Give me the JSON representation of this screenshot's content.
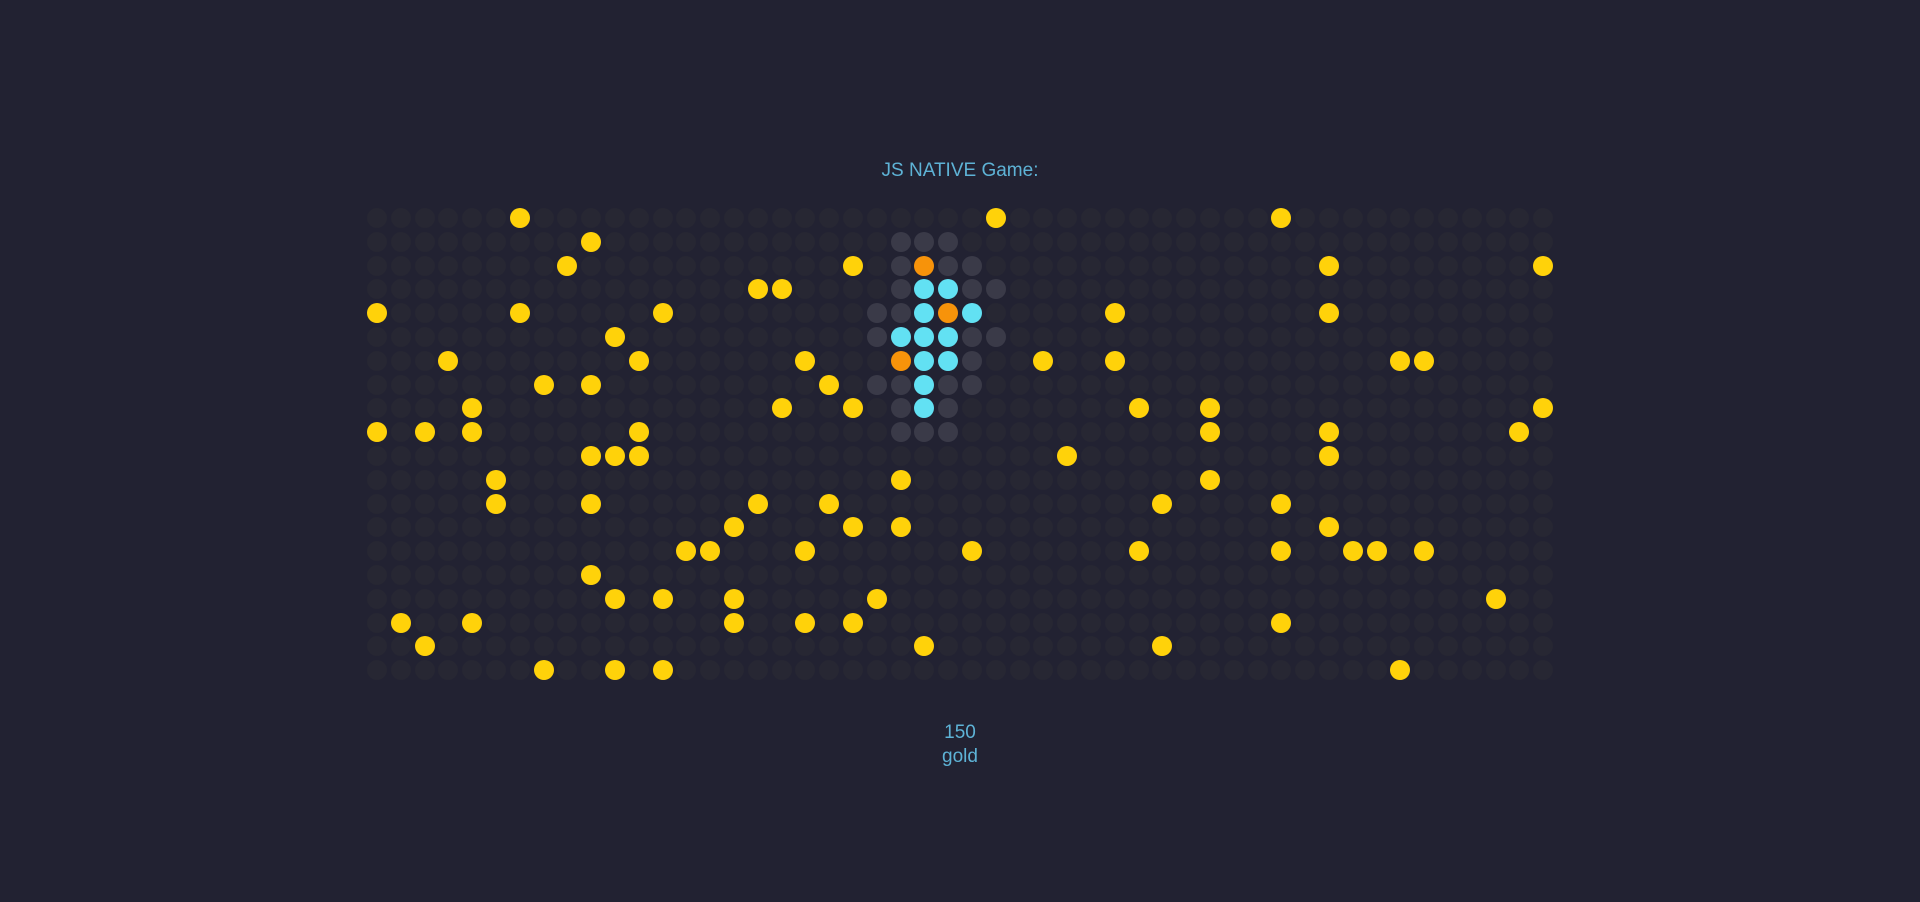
{
  "title": "JS NATIVE Game:",
  "score": {
    "value": "150",
    "unit": "gold"
  },
  "grid": {
    "cols": 50,
    "rows": 20,
    "legend": {
      "empty": "empty-cell",
      "fog": "revealed-cell",
      "gold": "gold-coin",
      "player": "player-body",
      "enemy": "enemy"
    },
    "colors": {
      "background": "#222232",
      "empty": "#272733",
      "fog": "#3a3a48",
      "gold": "#ffd20a",
      "player": "#62e1f3",
      "enemy": "#f7930a",
      "text": "#5eb3d6"
    },
    "gold": [
      [
        0,
        6
      ],
      [
        0,
        26
      ],
      [
        0,
        38
      ],
      [
        1,
        9
      ],
      [
        2,
        8
      ],
      [
        2,
        20
      ],
      [
        2,
        40
      ],
      [
        2,
        49
      ],
      [
        3,
        16
      ],
      [
        3,
        17
      ],
      [
        4,
        0
      ],
      [
        4,
        6
      ],
      [
        4,
        12
      ],
      [
        4,
        31
      ],
      [
        4,
        40
      ],
      [
        5,
        10
      ],
      [
        6,
        3
      ],
      [
        6,
        11
      ],
      [
        6,
        18
      ],
      [
        6,
        28
      ],
      [
        6,
        31
      ],
      [
        6,
        43
      ],
      [
        6,
        44
      ],
      [
        7,
        7
      ],
      [
        7,
        9
      ],
      [
        7,
        19
      ],
      [
        8,
        4
      ],
      [
        8,
        17
      ],
      [
        8,
        20
      ],
      [
        8,
        32
      ],
      [
        8,
        35
      ],
      [
        8,
        49
      ],
      [
        9,
        0
      ],
      [
        9,
        2
      ],
      [
        9,
        4
      ],
      [
        9,
        11
      ],
      [
        9,
        35
      ],
      [
        9,
        40
      ],
      [
        9,
        48
      ],
      [
        10,
        9
      ],
      [
        10,
        10
      ],
      [
        10,
        11
      ],
      [
        10,
        29
      ],
      [
        10,
        40
      ],
      [
        11,
        5
      ],
      [
        11,
        22
      ],
      [
        11,
        35
      ],
      [
        12,
        5
      ],
      [
        12,
        9
      ],
      [
        12,
        16
      ],
      [
        12,
        19
      ],
      [
        12,
        33
      ],
      [
        12,
        38
      ],
      [
        13,
        15
      ],
      [
        13,
        20
      ],
      [
        13,
        22
      ],
      [
        13,
        40
      ],
      [
        14,
        13
      ],
      [
        14,
        14
      ],
      [
        14,
        18
      ],
      [
        14,
        25
      ],
      [
        14,
        32
      ],
      [
        14,
        38
      ],
      [
        14,
        41
      ],
      [
        14,
        42
      ],
      [
        14,
        44
      ],
      [
        15,
        9
      ],
      [
        16,
        10
      ],
      [
        16,
        12
      ],
      [
        16,
        15
      ],
      [
        16,
        21
      ],
      [
        16,
        47
      ],
      [
        17,
        1
      ],
      [
        17,
        4
      ],
      [
        17,
        15
      ],
      [
        17,
        18
      ],
      [
        17,
        20
      ],
      [
        17,
        38
      ],
      [
        18,
        2
      ],
      [
        18,
        23
      ],
      [
        18,
        33
      ],
      [
        19,
        7
      ],
      [
        19,
        10
      ],
      [
        19,
        12
      ],
      [
        19,
        43
      ]
    ],
    "fog": [
      [
        1,
        22
      ],
      [
        1,
        23
      ],
      [
        1,
        24
      ],
      [
        2,
        22
      ],
      [
        2,
        24
      ],
      [
        2,
        25
      ],
      [
        3,
        22
      ],
      [
        3,
        25
      ],
      [
        3,
        26
      ],
      [
        4,
        21
      ],
      [
        4,
        22
      ],
      [
        5,
        21
      ],
      [
        5,
        25
      ],
      [
        5,
        26
      ],
      [
        6,
        25
      ],
      [
        7,
        21
      ],
      [
        7,
        22
      ],
      [
        7,
        24
      ],
      [
        7,
        25
      ],
      [
        8,
        22
      ],
      [
        8,
        24
      ],
      [
        9,
        22
      ],
      [
        9,
        23
      ],
      [
        9,
        24
      ]
    ],
    "player": [
      [
        3,
        23
      ],
      [
        3,
        24
      ],
      [
        4,
        23
      ],
      [
        4,
        25
      ],
      [
        5,
        22
      ],
      [
        5,
        23
      ],
      [
        5,
        24
      ],
      [
        6,
        23
      ],
      [
        6,
        24
      ],
      [
        7,
        23
      ],
      [
        8,
        23
      ]
    ],
    "enemy": [
      [
        2,
        23
      ],
      [
        4,
        24
      ],
      [
        6,
        22
      ]
    ]
  }
}
